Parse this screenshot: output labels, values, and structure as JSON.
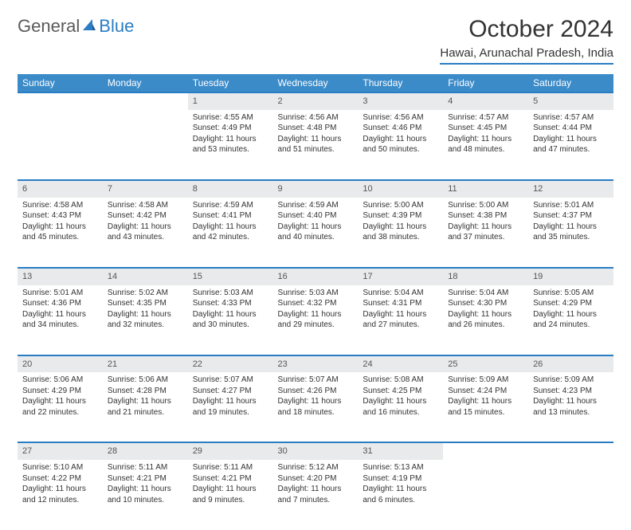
{
  "logo": {
    "general": "General",
    "blue": "Blue"
  },
  "title": "October 2024",
  "location": "Hawai, Arunachal Pradesh, India",
  "colors": {
    "header_bg": "#3b8bc9",
    "header_text": "#ffffff",
    "accent": "#2a7dc4",
    "daynum_bg": "#e9eaeb",
    "text": "#333333",
    "muted": "#555555",
    "logo_gray": "#5a5a5a"
  },
  "typography": {
    "title_fontsize": 30,
    "location_fontsize": 15,
    "weekday_fontsize": 12,
    "daynum_fontsize": 11,
    "cell_fontsize": 10
  },
  "weekdays": [
    "Sunday",
    "Monday",
    "Tuesday",
    "Wednesday",
    "Thursday",
    "Friday",
    "Saturday"
  ],
  "weeks": [
    [
      null,
      null,
      {
        "n": "1",
        "sr": "Sunrise: 4:55 AM",
        "ss": "Sunset: 4:49 PM",
        "d1": "Daylight: 11 hours",
        "d2": "and 53 minutes."
      },
      {
        "n": "2",
        "sr": "Sunrise: 4:56 AM",
        "ss": "Sunset: 4:48 PM",
        "d1": "Daylight: 11 hours",
        "d2": "and 51 minutes."
      },
      {
        "n": "3",
        "sr": "Sunrise: 4:56 AM",
        "ss": "Sunset: 4:46 PM",
        "d1": "Daylight: 11 hours",
        "d2": "and 50 minutes."
      },
      {
        "n": "4",
        "sr": "Sunrise: 4:57 AM",
        "ss": "Sunset: 4:45 PM",
        "d1": "Daylight: 11 hours",
        "d2": "and 48 minutes."
      },
      {
        "n": "5",
        "sr": "Sunrise: 4:57 AM",
        "ss": "Sunset: 4:44 PM",
        "d1": "Daylight: 11 hours",
        "d2": "and 47 minutes."
      }
    ],
    [
      {
        "n": "6",
        "sr": "Sunrise: 4:58 AM",
        "ss": "Sunset: 4:43 PM",
        "d1": "Daylight: 11 hours",
        "d2": "and 45 minutes."
      },
      {
        "n": "7",
        "sr": "Sunrise: 4:58 AM",
        "ss": "Sunset: 4:42 PM",
        "d1": "Daylight: 11 hours",
        "d2": "and 43 minutes."
      },
      {
        "n": "8",
        "sr": "Sunrise: 4:59 AM",
        "ss": "Sunset: 4:41 PM",
        "d1": "Daylight: 11 hours",
        "d2": "and 42 minutes."
      },
      {
        "n": "9",
        "sr": "Sunrise: 4:59 AM",
        "ss": "Sunset: 4:40 PM",
        "d1": "Daylight: 11 hours",
        "d2": "and 40 minutes."
      },
      {
        "n": "10",
        "sr": "Sunrise: 5:00 AM",
        "ss": "Sunset: 4:39 PM",
        "d1": "Daylight: 11 hours",
        "d2": "and 38 minutes."
      },
      {
        "n": "11",
        "sr": "Sunrise: 5:00 AM",
        "ss": "Sunset: 4:38 PM",
        "d1": "Daylight: 11 hours",
        "d2": "and 37 minutes."
      },
      {
        "n": "12",
        "sr": "Sunrise: 5:01 AM",
        "ss": "Sunset: 4:37 PM",
        "d1": "Daylight: 11 hours",
        "d2": "and 35 minutes."
      }
    ],
    [
      {
        "n": "13",
        "sr": "Sunrise: 5:01 AM",
        "ss": "Sunset: 4:36 PM",
        "d1": "Daylight: 11 hours",
        "d2": "and 34 minutes."
      },
      {
        "n": "14",
        "sr": "Sunrise: 5:02 AM",
        "ss": "Sunset: 4:35 PM",
        "d1": "Daylight: 11 hours",
        "d2": "and 32 minutes."
      },
      {
        "n": "15",
        "sr": "Sunrise: 5:03 AM",
        "ss": "Sunset: 4:33 PM",
        "d1": "Daylight: 11 hours",
        "d2": "and 30 minutes."
      },
      {
        "n": "16",
        "sr": "Sunrise: 5:03 AM",
        "ss": "Sunset: 4:32 PM",
        "d1": "Daylight: 11 hours",
        "d2": "and 29 minutes."
      },
      {
        "n": "17",
        "sr": "Sunrise: 5:04 AM",
        "ss": "Sunset: 4:31 PM",
        "d1": "Daylight: 11 hours",
        "d2": "and 27 minutes."
      },
      {
        "n": "18",
        "sr": "Sunrise: 5:04 AM",
        "ss": "Sunset: 4:30 PM",
        "d1": "Daylight: 11 hours",
        "d2": "and 26 minutes."
      },
      {
        "n": "19",
        "sr": "Sunrise: 5:05 AM",
        "ss": "Sunset: 4:29 PM",
        "d1": "Daylight: 11 hours",
        "d2": "and 24 minutes."
      }
    ],
    [
      {
        "n": "20",
        "sr": "Sunrise: 5:06 AM",
        "ss": "Sunset: 4:29 PM",
        "d1": "Daylight: 11 hours",
        "d2": "and 22 minutes."
      },
      {
        "n": "21",
        "sr": "Sunrise: 5:06 AM",
        "ss": "Sunset: 4:28 PM",
        "d1": "Daylight: 11 hours",
        "d2": "and 21 minutes."
      },
      {
        "n": "22",
        "sr": "Sunrise: 5:07 AM",
        "ss": "Sunset: 4:27 PM",
        "d1": "Daylight: 11 hours",
        "d2": "and 19 minutes."
      },
      {
        "n": "23",
        "sr": "Sunrise: 5:07 AM",
        "ss": "Sunset: 4:26 PM",
        "d1": "Daylight: 11 hours",
        "d2": "and 18 minutes."
      },
      {
        "n": "24",
        "sr": "Sunrise: 5:08 AM",
        "ss": "Sunset: 4:25 PM",
        "d1": "Daylight: 11 hours",
        "d2": "and 16 minutes."
      },
      {
        "n": "25",
        "sr": "Sunrise: 5:09 AM",
        "ss": "Sunset: 4:24 PM",
        "d1": "Daylight: 11 hours",
        "d2": "and 15 minutes."
      },
      {
        "n": "26",
        "sr": "Sunrise: 5:09 AM",
        "ss": "Sunset: 4:23 PM",
        "d1": "Daylight: 11 hours",
        "d2": "and 13 minutes."
      }
    ],
    [
      {
        "n": "27",
        "sr": "Sunrise: 5:10 AM",
        "ss": "Sunset: 4:22 PM",
        "d1": "Daylight: 11 hours",
        "d2": "and 12 minutes."
      },
      {
        "n": "28",
        "sr": "Sunrise: 5:11 AM",
        "ss": "Sunset: 4:21 PM",
        "d1": "Daylight: 11 hours",
        "d2": "and 10 minutes."
      },
      {
        "n": "29",
        "sr": "Sunrise: 5:11 AM",
        "ss": "Sunset: 4:21 PM",
        "d1": "Daylight: 11 hours",
        "d2": "and 9 minutes."
      },
      {
        "n": "30",
        "sr": "Sunrise: 5:12 AM",
        "ss": "Sunset: 4:20 PM",
        "d1": "Daylight: 11 hours",
        "d2": "and 7 minutes."
      },
      {
        "n": "31",
        "sr": "Sunrise: 5:13 AM",
        "ss": "Sunset: 4:19 PM",
        "d1": "Daylight: 11 hours",
        "d2": "and 6 minutes."
      },
      null,
      null
    ]
  ]
}
